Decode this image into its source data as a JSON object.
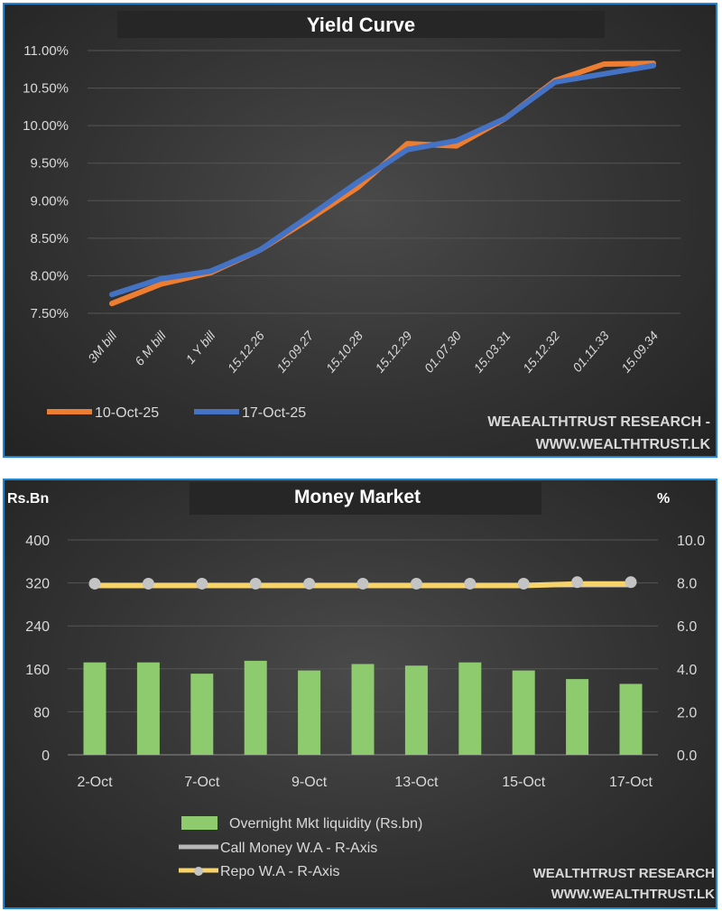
{
  "colors": {
    "border": "#1b87d6",
    "orange": "#ED7D31",
    "blue": "#4472C4",
    "green": "#8DCB6E",
    "yellow": "#F6D36B",
    "gray": "#B8B8B8",
    "grid": "#555555",
    "text": "#d9d9d9"
  },
  "chart_data": [
    {
      "type": "line",
      "title": "Yield Curve",
      "categories": [
        "3M bill",
        "6 M bill",
        "1 Y bill",
        "15.12.26",
        "15.09.27",
        "15.10.28",
        "15.12.29",
        "01.07.30",
        "15.03.31",
        "15.12.32",
        "01.11.33",
        "15.09.34"
      ],
      "y_ticks": [
        "11.00%",
        "10.50%",
        "10.00%",
        "9.50%",
        "9.00%",
        "8.50%",
        "8.00%",
        "7.50%"
      ],
      "ylim": [
        7.5,
        11.0
      ],
      "grid": true,
      "legend_placement": "bottom-left",
      "series": [
        {
          "name": "10-Oct-25",
          "color": "#ED7D31",
          "values": [
            7.63,
            7.89,
            8.04,
            8.34,
            8.75,
            9.18,
            9.76,
            9.73,
            10.1,
            10.6,
            10.82,
            10.83
          ]
        },
        {
          "name": "17-Oct-25",
          "color": "#4472C4",
          "values": [
            7.75,
            7.96,
            8.06,
            8.34,
            8.79,
            9.25,
            9.68,
            9.8,
            10.1,
            10.58,
            10.69,
            10.8
          ]
        }
      ],
      "watermark": [
        "WEAEALTHTRUST RESEARCH -",
        "WWW.WEALTHTRUST.LK"
      ]
    },
    {
      "type": "bar",
      "title": "Money Market",
      "left_axis_title": "Rs.Bn",
      "right_axis_title": "%",
      "x_tick_labels": [
        "2-Oct",
        "",
        "7-Oct",
        "",
        "9-Oct",
        "",
        "13-Oct",
        "",
        "15-Oct",
        "",
        "17-Oct"
      ],
      "left_ticks": [
        "400",
        "320",
        "240",
        "160",
        "80",
        "0"
      ],
      "right_ticks": [
        "10.0",
        "8.0",
        "6.0",
        "4.0",
        "2.0",
        "0.0"
      ],
      "ylim_left": [
        0,
        400
      ],
      "ylim_right": [
        0,
        10
      ],
      "grid": true,
      "legend_placement": "bottom-center",
      "series": [
        {
          "name": "Overnight Mkt liquidity (Rs.bn)",
          "type": "bar",
          "axis": "left",
          "color": "#8DCB6E",
          "values": [
            172,
            172,
            151,
            175,
            157,
            169,
            166,
            172,
            157,
            141,
            132
          ]
        },
        {
          "name": "Call Money W.A - R-Axis",
          "type": "line",
          "axis": "right",
          "color": "#B8B8B8",
          "values": [
            7.9,
            7.9,
            7.9,
            7.9,
            7.9,
            7.9,
            7.9,
            7.9,
            7.9,
            7.9,
            7.9
          ]
        },
        {
          "name": "Repo W.A - R-Axis",
          "type": "line",
          "axis": "right",
          "color": "#F6D36B",
          "values": [
            7.88,
            7.88,
            7.88,
            7.88,
            7.88,
            7.88,
            7.88,
            7.88,
            7.88,
            7.95,
            7.95
          ]
        }
      ],
      "watermark": [
        "WEALTHTRUST RESEARCH",
        "WWW.WEALTHTRUST.LK"
      ]
    }
  ]
}
